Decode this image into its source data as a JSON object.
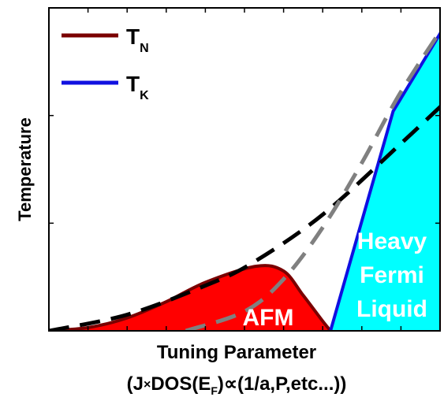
{
  "chart_data": {
    "type": "area",
    "xlabel_line1": "Tuning Parameter",
    "xlabel_line2": {
      "prefix": "(J",
      "times": "×",
      "dos": "DOS(E",
      "sub": "F",
      "rest": ")∝(1/a,P,etc...))"
    },
    "ylabel": "Temperature",
    "xlim": [
      0,
      10
    ],
    "ylim": [
      0,
      10
    ],
    "legend": [
      {
        "name": "T",
        "sub": "N",
        "color": "#7a0000"
      },
      {
        "name": "T",
        "sub": "K",
        "color": "#1010e0"
      }
    ],
    "legend_position": "top-left",
    "regions": [
      {
        "label": "AFM",
        "color": "#ff0000"
      },
      {
        "label_lines": [
          "Heavy",
          "Fermi",
          "Liquid"
        ],
        "color": "#00ffff"
      }
    ],
    "series": [
      {
        "name": "T_N",
        "color": "#7a0000",
        "x": [
          0,
          1,
          2,
          3,
          4,
          5.3,
          6,
          6.5,
          7,
          7.2
        ],
        "y": [
          0,
          0.1,
          0.4,
          0.9,
          1.5,
          2.0,
          1.85,
          1.1,
          0.3,
          0
        ]
      },
      {
        "name": "T_K",
        "color": "#1010e0",
        "x": [
          7.2,
          8.8,
          10.4
        ],
        "y": [
          0,
          6.8,
          10.0
        ]
      },
      {
        "style": "black-dashed",
        "color": "#000000",
        "x": [
          0,
          2,
          4,
          5.2,
          7,
          9,
          10.5
        ],
        "y": [
          0,
          0.5,
          1.4,
          2.1,
          3.6,
          5.8,
          7.5
        ]
      },
      {
        "style": "gray-dashed",
        "color": "#808080",
        "x": [
          3.5,
          5,
          6,
          7,
          8,
          9,
          10.4
        ],
        "y": [
          0,
          0.6,
          1.6,
          3.2,
          5.2,
          7.4,
          10.0
        ]
      }
    ]
  }
}
